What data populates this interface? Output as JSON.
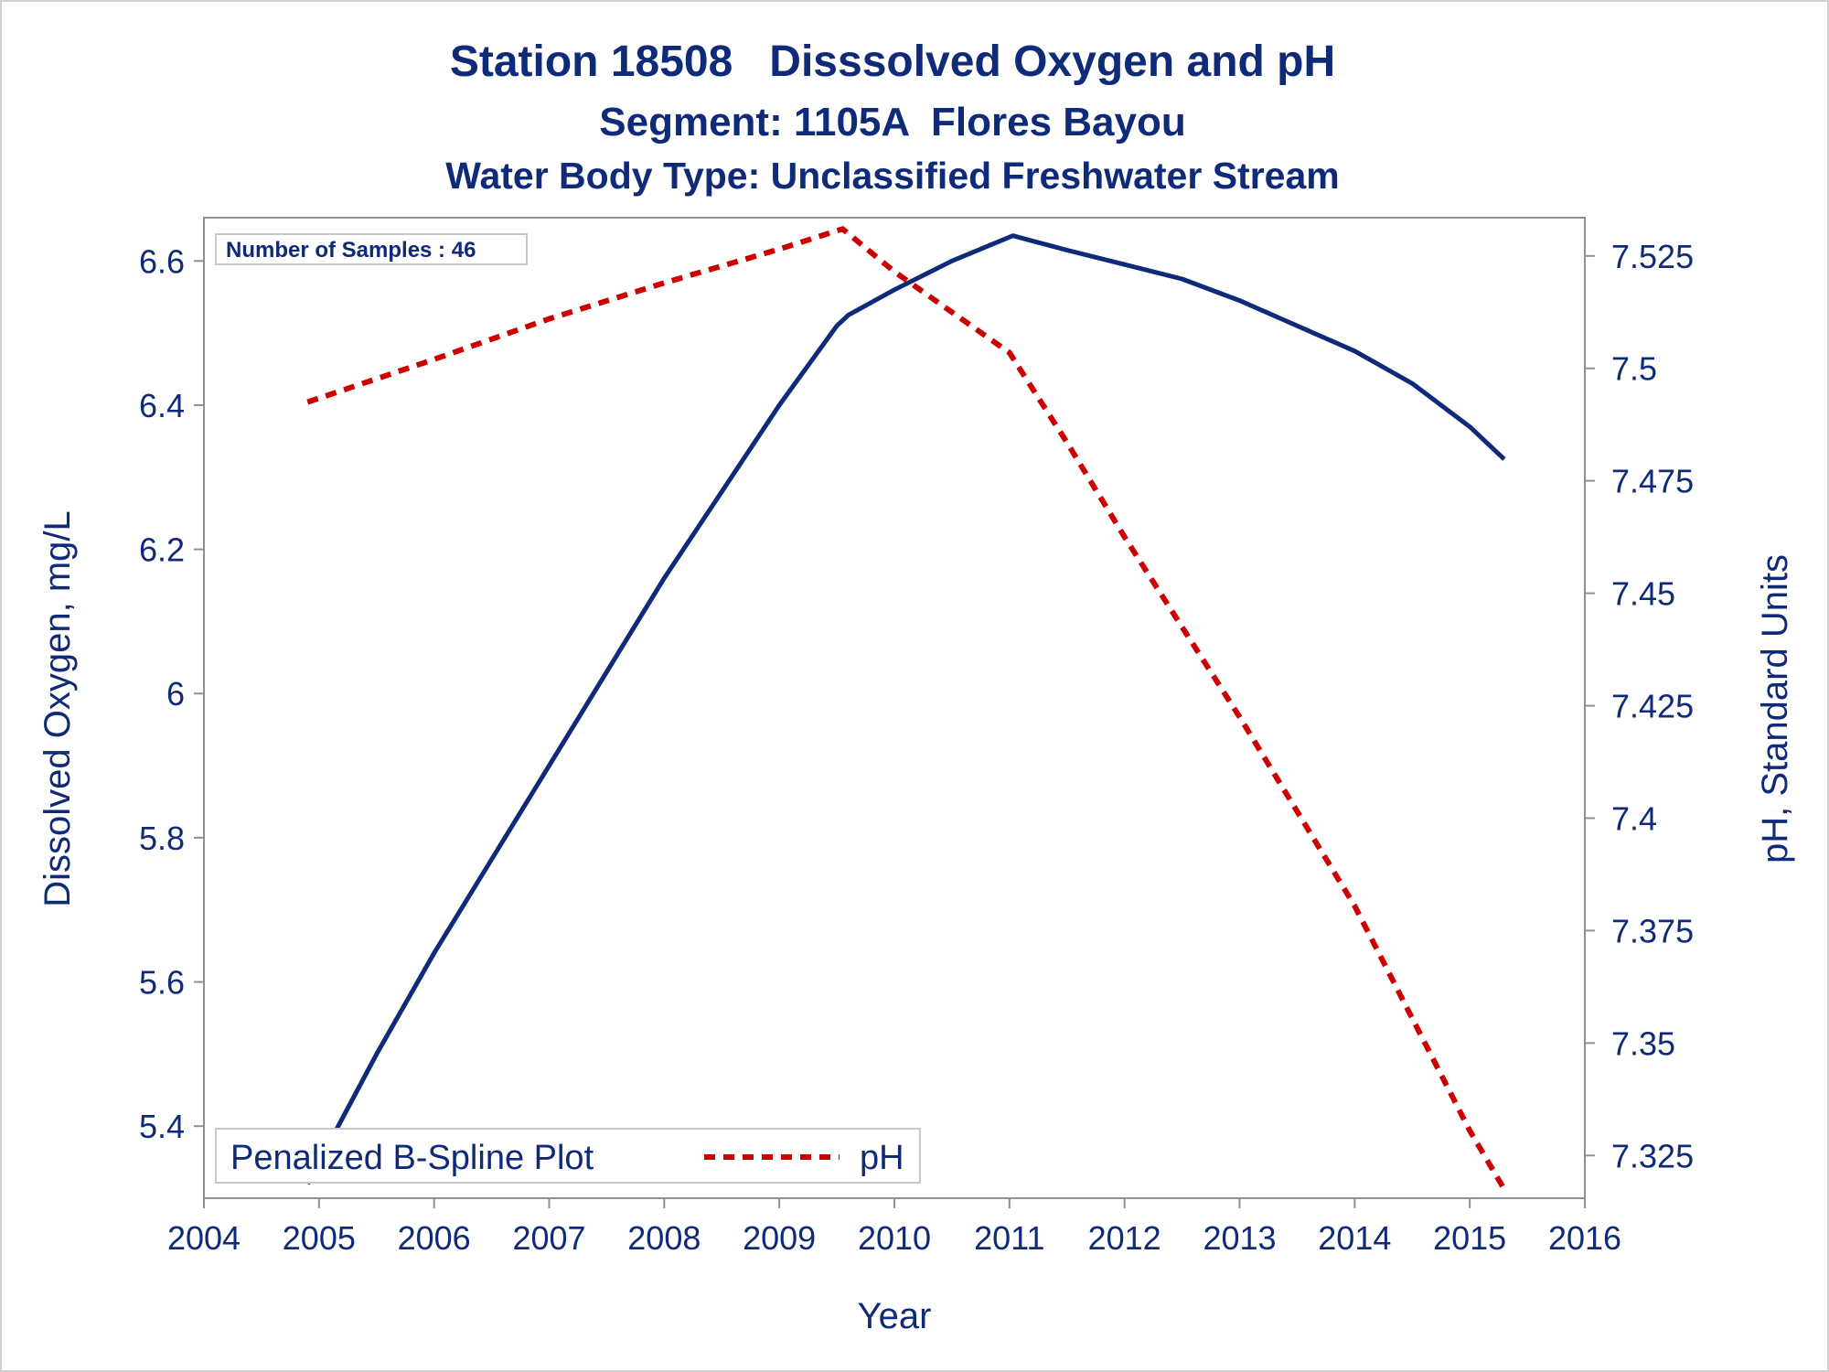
{
  "titles": {
    "line1": "Station 18508   Disssolved Oxygen and pH",
    "line2": "Segment: 1105A  Flores Bayou",
    "line3": "Water Body Type: Unclassified Freshwater Stream"
  },
  "inset": {
    "samples_text": "Number of Samples : 46"
  },
  "legend": {
    "title": "Penalized B-Spline Plot",
    "ph_label": "pH"
  },
  "colors": {
    "oxygen": "#0f2a78",
    "ph": "#cc0000",
    "text": "#0f2a78",
    "axis": "#909090",
    "frame": "#d0d0d0"
  },
  "chart_data": {
    "type": "line",
    "xlabel": "Year",
    "ylabel_left": "Dissolved Oxygen, mg/L",
    "ylabel_right": "pH, Standard Units",
    "xlim": [
      2004,
      2016
    ],
    "ylim_left": [
      5.3,
      6.66
    ],
    "ylim_right": [
      7.3155,
      7.5335
    ],
    "x_ticks": [
      "2004",
      "2005",
      "2006",
      "2007",
      "2008",
      "2009",
      "2010",
      "2011",
      "2012",
      "2013",
      "2014",
      "2015",
      "2016"
    ],
    "y_left_ticks": [
      "5.4",
      "5.6",
      "5.8",
      "6",
      "6.2",
      "6.4",
      "6.6"
    ],
    "y_right_ticks": [
      "7.325",
      "7.35",
      "7.375",
      "7.4",
      "7.425",
      "7.45",
      "7.475",
      "7.5",
      "7.525"
    ],
    "grid": false,
    "legend_position": "bottom-left",
    "series": [
      {
        "name": "Dissolved Oxygen",
        "axis": "left",
        "style": "solid",
        "x": [
          2004.9,
          2005.5,
          2006.0,
          2006.5,
          2007.0,
          2007.5,
          2008.0,
          2008.5,
          2009.0,
          2009.5,
          2009.6,
          2010.0,
          2010.5,
          2011.03,
          2011.5,
          2012.0,
          2012.5,
          2013.0,
          2013.5,
          2014.0,
          2014.5,
          2015.0,
          2015.3
        ],
        "y": [
          5.32,
          5.5,
          5.64,
          5.77,
          5.9,
          6.03,
          6.16,
          6.28,
          6.4,
          6.51,
          6.525,
          6.56,
          6.6,
          6.635,
          6.615,
          6.595,
          6.575,
          6.545,
          6.51,
          6.475,
          6.43,
          6.37,
          6.325
        ]
      },
      {
        "name": "pH",
        "axis": "right",
        "style": "dashed",
        "x": [
          2004.9,
          2006.0,
          2007.0,
          2008.0,
          2009.0,
          2009.55,
          2010.0,
          2010.5,
          2011.0,
          2011.5,
          2012.0,
          2012.5,
          2013.0,
          2013.5,
          2014.0,
          2014.5,
          2015.0,
          2015.3
        ],
        "y": [
          7.4925,
          7.502,
          7.511,
          7.519,
          7.5265,
          7.531,
          7.5215,
          7.5125,
          7.5035,
          7.4835,
          7.4625,
          7.4425,
          7.4225,
          7.4015,
          7.3805,
          7.3555,
          7.3305,
          7.3175
        ]
      }
    ]
  }
}
